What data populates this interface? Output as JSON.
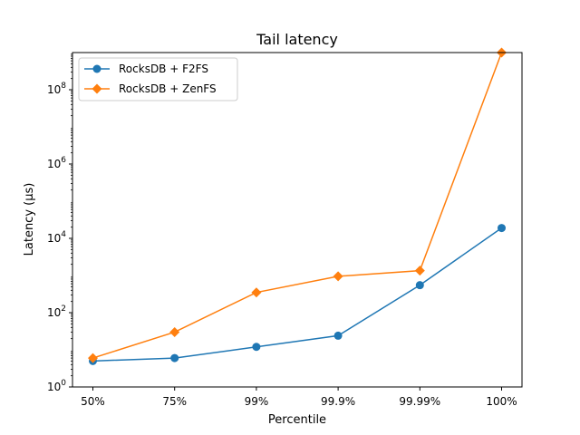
{
  "chart_data": {
    "type": "line",
    "title": "Tail latency",
    "xlabel": "Percentile",
    "ylabel": "Latency (μs)",
    "categories": [
      "50%",
      "75%",
      "99%",
      "99.9%",
      "99.99%",
      "100%"
    ],
    "yscale": "log",
    "ylim": [
      1,
      1000000000
    ],
    "yticks": [
      {
        "value": 1,
        "base": "10",
        "exp": "0"
      },
      {
        "value": 100,
        "base": "10",
        "exp": "2"
      },
      {
        "value": 10000,
        "base": "10",
        "exp": "4"
      },
      {
        "value": 1000000,
        "base": "10",
        "exp": "6"
      },
      {
        "value": 100000000,
        "base": "10",
        "exp": "8"
      }
    ],
    "grid": false,
    "legend_position": "top-left",
    "series": [
      {
        "name": "RocksDB + F2FS",
        "color": "#1f77b4",
        "marker": "circle",
        "values": [
          5,
          6,
          12,
          24,
          550,
          19000
        ]
      },
      {
        "name": "RocksDB + ZenFS",
        "color": "#ff7f0e",
        "marker": "diamond",
        "values": [
          6,
          30,
          350,
          950,
          1350,
          1000000000
        ]
      }
    ]
  }
}
